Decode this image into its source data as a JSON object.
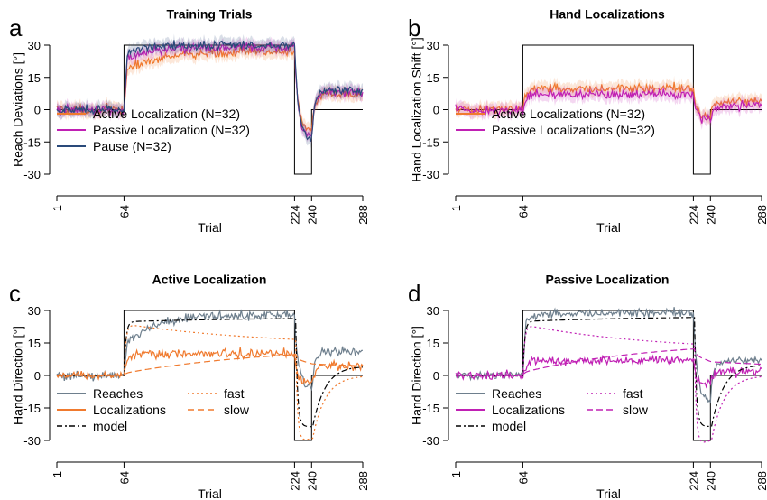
{
  "colors": {
    "active": "#F07A2E",
    "passive": "#C020B4",
    "pause": "#2A4A7A",
    "reaches": "#6E7F8D",
    "model": "#000000",
    "schedule": "#000000"
  },
  "chart_data": [
    {
      "id": "a",
      "type": "line",
      "letter": "a",
      "title": "Training Trials",
      "xlabel": "Trial",
      "ylabel": "Reach Deviations [°]",
      "xlim": [
        1,
        288
      ],
      "ylim": [
        -30,
        30
      ],
      "xticks": [
        1,
        64,
        224,
        240,
        288
      ],
      "yticks": [
        -30,
        -15,
        0,
        15,
        30
      ],
      "legend_position": "bottom-left",
      "schedule": {
        "x": [
          1,
          64,
          64,
          224,
          224,
          240,
          240,
          288
        ],
        "y": [
          0,
          0,
          30,
          30,
          -30,
          -30,
          0,
          0
        ],
        "clamp_dashed_from": 240
      },
      "series": [
        {
          "name": "Active Localization (N=32)",
          "color_key": "active",
          "shape": "learning",
          "plateau_pre_reverse": 27,
          "rate": 0.03,
          "start_level": 18,
          "reversal_min": -10,
          "clamp_level": 7,
          "noise": 2.0,
          "band": 3
        },
        {
          "name": "Passive Localization (N=32)",
          "color_key": "passive",
          "shape": "learning",
          "plateau_pre_reverse": 29,
          "rate": 0.05,
          "start_level": 22,
          "reversal_min": -13,
          "clamp_level": 8,
          "noise": 2.0,
          "band": 3
        },
        {
          "name": "Pause (N=32)",
          "color_key": "pause",
          "shape": "learning",
          "plateau_pre_reverse": 30,
          "rate": 0.08,
          "start_level": 25,
          "reversal_min": -14,
          "clamp_level": 9,
          "noise": 1.8,
          "band": 3
        }
      ]
    },
    {
      "id": "b",
      "type": "line",
      "letter": "b",
      "title": "Hand Localizations",
      "xlabel": "Trial",
      "ylabel": "Hand Localization Shift [°]",
      "xlim": [
        1,
        288
      ],
      "ylim": [
        -30,
        30
      ],
      "xticks": [
        1,
        64,
        224,
        240,
        288
      ],
      "yticks": [
        -30,
        -15,
        0,
        15,
        30
      ],
      "legend_position": "bottom-left",
      "schedule": {
        "x": [
          1,
          64,
          64,
          224,
          224,
          240,
          240,
          288
        ],
        "y": [
          0,
          0,
          30,
          30,
          -30,
          -30,
          0,
          0
        ]
      },
      "series": [
        {
          "name": "Active Localizations (N=32)",
          "color_key": "active",
          "shape": "prop",
          "level": 10,
          "reversal_min": -3,
          "clamp_level": 4,
          "noise": 2.0,
          "band": 3
        },
        {
          "name": "Passive Localizations (N=32)",
          "color_key": "passive",
          "shape": "prop",
          "level": 7,
          "reversal_min": -4,
          "clamp_level": 2,
          "noise": 2.0,
          "band": 3
        }
      ]
    },
    {
      "id": "c",
      "type": "line",
      "letter": "c",
      "title": "Active Localization",
      "xlabel": "Trial",
      "ylabel": "Hand Direction [°]",
      "xlim": [
        1,
        288
      ],
      "ylim": [
        -30,
        30
      ],
      "xticks": [
        1,
        64,
        224,
        240,
        288
      ],
      "yticks": [
        -30,
        -15,
        0,
        15,
        30
      ],
      "legend_position": "bottom-left",
      "schedule": {
        "x": [
          1,
          64,
          64,
          224,
          224,
          240,
          240,
          288
        ],
        "y": [
          0,
          0,
          30,
          30,
          -30,
          -30,
          0,
          0
        ]
      },
      "series": [
        {
          "name": "Reaches",
          "color_key": "reaches",
          "shape": "learning",
          "plateau_pre_reverse": 28,
          "rate": 0.035,
          "start_level": 14,
          "reversal_min": -6,
          "clamp_level": 11,
          "noise": 2.0
        },
        {
          "name": "Localizations",
          "color_key": "active",
          "shape": "prop",
          "level": 10,
          "reversal_min": -3,
          "clamp_level": 4,
          "noise": 2.0
        },
        {
          "name": "model",
          "color_key": "model",
          "shape": "model",
          "dash": "6,3,2,3",
          "fast_rate": 0.35,
          "slow_rate": 0.018,
          "fast_retain": 0.92,
          "slow_retain": 0.996
        },
        {
          "name": "fast",
          "color_key": "active",
          "shape": "fast",
          "dash": "2,3"
        },
        {
          "name": "slow",
          "color_key": "active",
          "shape": "slow",
          "dash": "7,4"
        }
      ],
      "legend_columns": [
        [
          "Reaches",
          "Localizations",
          "model"
        ],
        [
          "fast",
          "slow"
        ]
      ]
    },
    {
      "id": "d",
      "type": "line",
      "letter": "d",
      "title": "Passive Localization",
      "xlabel": "Trial",
      "ylabel": "Hand Direction [°]",
      "xlim": [
        1,
        288
      ],
      "ylim": [
        -30,
        30
      ],
      "xticks": [
        1,
        64,
        224,
        240,
        288
      ],
      "yticks": [
        -30,
        -15,
        0,
        15,
        30
      ],
      "legend_position": "bottom-left",
      "schedule": {
        "x": [
          1,
          64,
          64,
          224,
          224,
          240,
          240,
          288
        ],
        "y": [
          0,
          0,
          30,
          30,
          -30,
          -30,
          0,
          0
        ]
      },
      "series": [
        {
          "name": "Reaches",
          "color_key": "reaches",
          "shape": "learning",
          "plateau_pre_reverse": 29,
          "rate": 0.09,
          "start_level": 24,
          "reversal_min": -12,
          "clamp_level": 7,
          "noise": 1.8
        },
        {
          "name": "Localizations",
          "color_key": "passive",
          "shape": "prop",
          "level": 7,
          "reversal_min": -4,
          "clamp_level": 2,
          "noise": 2.0
        },
        {
          "name": "model",
          "color_key": "model",
          "shape": "model",
          "dash": "6,3,2,3",
          "fast_rate": 0.35,
          "slow_rate": 0.025,
          "fast_retain": 0.92,
          "slow_retain": 0.996
        },
        {
          "name": "fast",
          "color_key": "passive",
          "shape": "fast",
          "dash": "2,3"
        },
        {
          "name": "slow",
          "color_key": "passive",
          "shape": "slow",
          "dash": "7,4"
        }
      ],
      "legend_columns": [
        [
          "Reaches",
          "Localizations",
          "model"
        ],
        [
          "fast",
          "slow"
        ]
      ]
    }
  ]
}
